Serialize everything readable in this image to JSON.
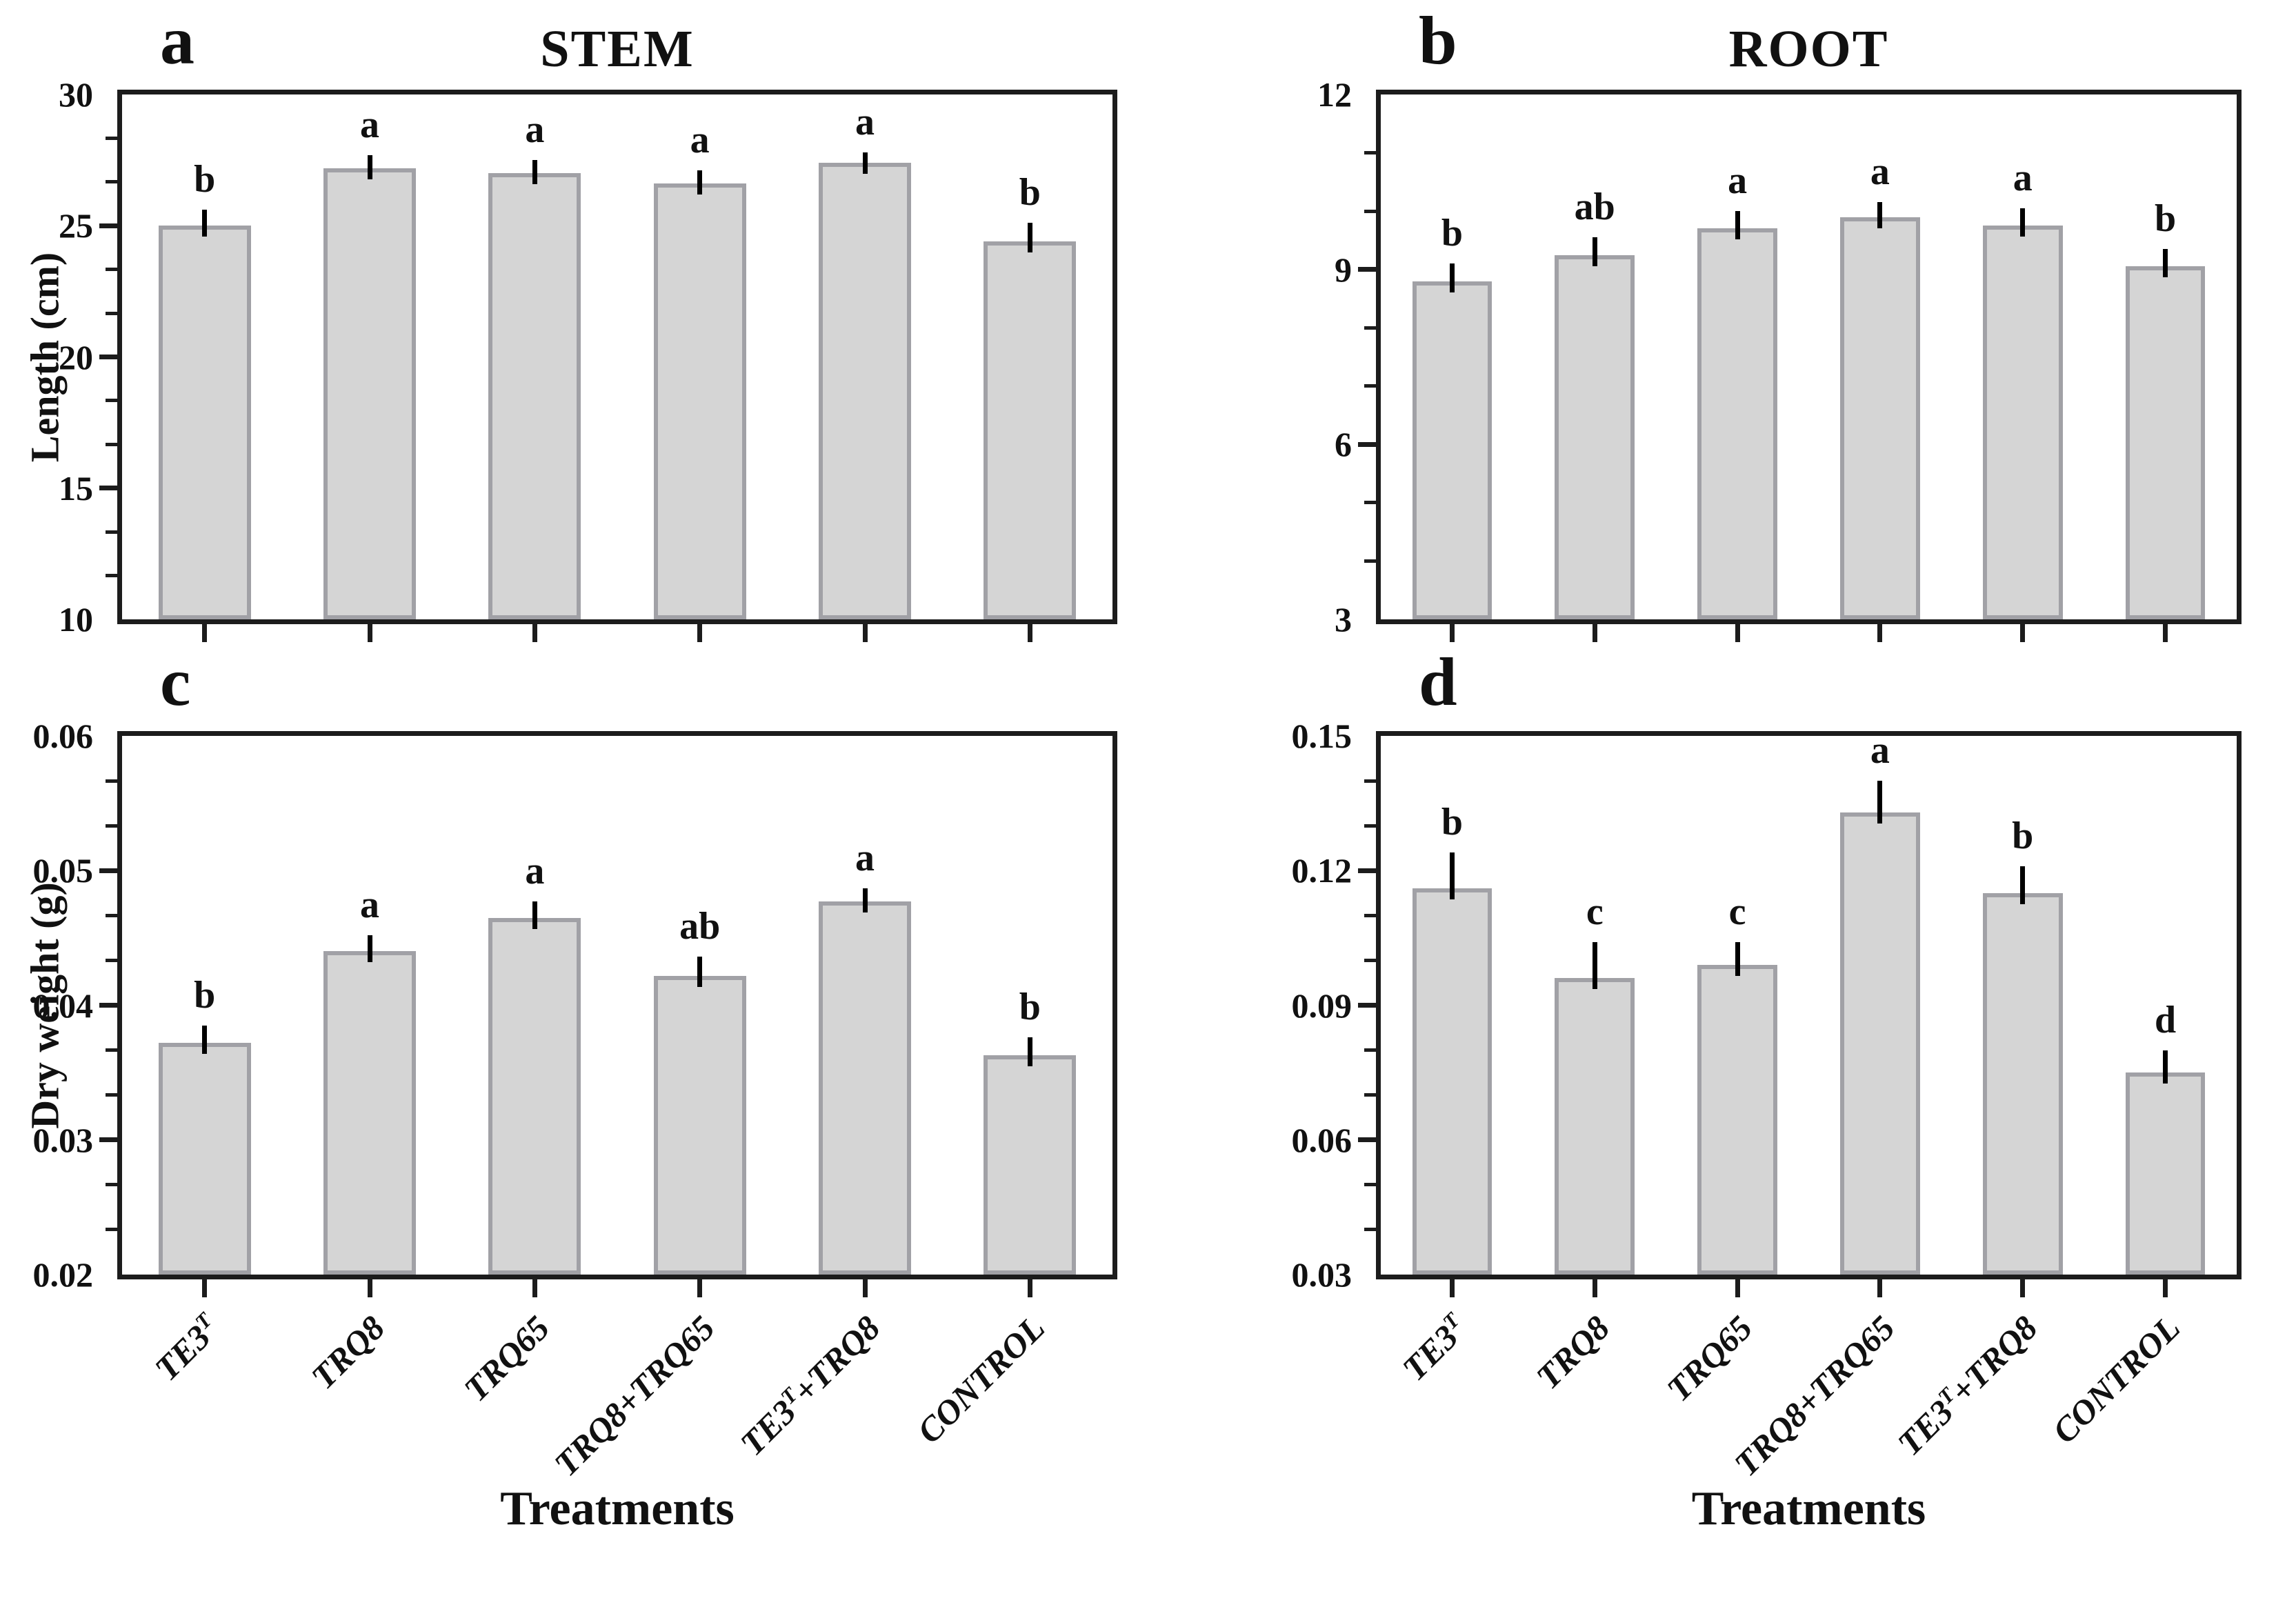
{
  "figure": {
    "background": "#ffffff",
    "axis_color": "#1c1c1c",
    "bar_fill": "#d5d5d5",
    "bar_border": "#a1a1a6",
    "error_bar_color": "#000000",
    "categories": [
      "TE3^T",
      "TRQ8",
      "TRQ65",
      "TRQ8+TRQ65",
      "TE3^T+TRQ8",
      "CONTROL"
    ],
    "x_axis_title": "Treatments"
  },
  "chart_data": [
    {
      "type": "bar",
      "panel_letter": "a",
      "title": "STEM",
      "ylabel": "Length (cm)",
      "xlabel": "",
      "categories": [
        "TE3^T",
        "TRQ8",
        "TRQ65",
        "TRQ8+TRQ65",
        "TE3^T+TRQ8",
        "CONTROL"
      ],
      "values": [
        25.0,
        27.2,
        27.0,
        26.6,
        27.4,
        24.4
      ],
      "errors": [
        0.6,
        0.5,
        0.5,
        0.5,
        0.4,
        0.7
      ],
      "sig_letters": [
        "b",
        "a",
        "a",
        "a",
        "a",
        "b"
      ],
      "ylim": [
        10,
        30
      ],
      "ytick_values": [
        10,
        15,
        20,
        25,
        30
      ],
      "ytick_labels": [
        "10",
        "15",
        "20",
        "25",
        "30"
      ],
      "minor_ticks_per_interval": 2,
      "show_x_labels": false,
      "grid": false,
      "legend": "none"
    },
    {
      "type": "bar",
      "panel_letter": "b",
      "title": "ROOT",
      "ylabel": "",
      "xlabel": "",
      "categories": [
        "TE3^T",
        "TRQ8",
        "TRQ65",
        "TRQ8+TRQ65",
        "TE3^T+TRQ8",
        "CONTROL"
      ],
      "values": [
        8.8,
        9.25,
        9.7,
        9.9,
        9.75,
        9.05
      ],
      "errors": [
        0.3,
        0.3,
        0.3,
        0.25,
        0.3,
        0.3
      ],
      "sig_letters": [
        "b",
        "ab",
        "a",
        "a",
        "a",
        "b"
      ],
      "ylim": [
        3,
        12
      ],
      "ytick_values": [
        3,
        6,
        9,
        12
      ],
      "ytick_labels": [
        "3",
        "6",
        "9",
        "12"
      ],
      "minor_ticks_per_interval": 2,
      "show_x_labels": false,
      "grid": false,
      "legend": "none"
    },
    {
      "type": "bar",
      "panel_letter": "c",
      "title": "",
      "ylabel": "Dry weight (g)",
      "xlabel": "Treatments",
      "categories": [
        "TE3^T",
        "TRQ8",
        "TRQ65",
        "TRQ8+TRQ65",
        "TE3^T+TRQ8",
        "CONTROL"
      ],
      "values": [
        0.0372,
        0.044,
        0.0465,
        0.0422,
        0.0477,
        0.0363
      ],
      "errors": [
        0.0013,
        0.0012,
        0.0012,
        0.0014,
        0.001,
        0.0013
      ],
      "sig_letters": [
        "b",
        "a",
        "a",
        "ab",
        "a",
        "b"
      ],
      "ylim": [
        0.02,
        0.06
      ],
      "ytick_values": [
        0.02,
        0.03,
        0.04,
        0.05,
        0.06
      ],
      "ytick_labels": [
        "0.02",
        "0.03",
        "0.04",
        "0.05",
        "0.06"
      ],
      "minor_ticks_per_interval": 2,
      "show_x_labels": true,
      "grid": false,
      "legend": "none"
    },
    {
      "type": "bar",
      "panel_letter": "d",
      "title": "",
      "ylabel": "",
      "xlabel": "Treatments",
      "categories": [
        "TE3^T",
        "TRQ8",
        "TRQ65",
        "TRQ8+TRQ65",
        "TE3^T+TRQ8",
        "CONTROL"
      ],
      "values": [
        0.116,
        0.096,
        0.099,
        0.133,
        0.115,
        0.075
      ],
      "errors": [
        0.008,
        0.008,
        0.005,
        0.007,
        0.006,
        0.005
      ],
      "sig_letters": [
        "b",
        "c",
        "c",
        "a",
        "b",
        "d"
      ],
      "ylim": [
        0.03,
        0.15
      ],
      "ytick_values": [
        0.03,
        0.06,
        0.09,
        0.12,
        0.15
      ],
      "ytick_labels": [
        "0.03",
        "0.06",
        "0.09",
        "0.12",
        "0.15"
      ],
      "minor_ticks_per_interval": 2,
      "show_x_labels": true,
      "grid": false,
      "legend": "none"
    }
  ]
}
